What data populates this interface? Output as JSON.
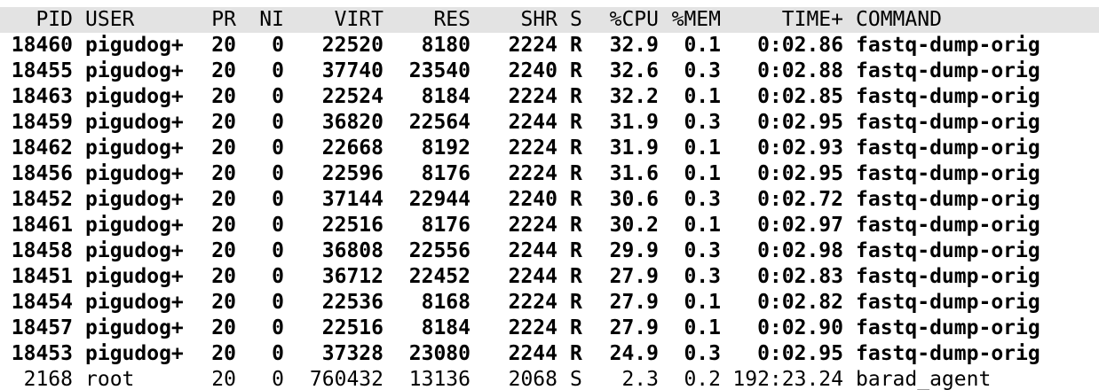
{
  "header": {
    "pid": "PID",
    "user": "USER",
    "pr": "PR",
    "ni": "NI",
    "virt": "VIRT",
    "res": "RES",
    "shr": "SHR",
    "s": "S",
    "cpu": "%CPU",
    "mem": "%MEM",
    "time": "TIME+",
    "command": "COMMAND"
  },
  "processes": [
    {
      "pid": "18460",
      "user": "pigudog+",
      "pr": "20",
      "ni": "0",
      "virt": "22520",
      "res": "8180",
      "shr": "2224",
      "s": "R",
      "cpu": "32.9",
      "mem": "0.1",
      "time": "0:02.86",
      "command": "fastq-dump-orig",
      "bold": true
    },
    {
      "pid": "18455",
      "user": "pigudog+",
      "pr": "20",
      "ni": "0",
      "virt": "37740",
      "res": "23540",
      "shr": "2240",
      "s": "R",
      "cpu": "32.6",
      "mem": "0.3",
      "time": "0:02.88",
      "command": "fastq-dump-orig",
      "bold": true
    },
    {
      "pid": "18463",
      "user": "pigudog+",
      "pr": "20",
      "ni": "0",
      "virt": "22524",
      "res": "8184",
      "shr": "2224",
      "s": "R",
      "cpu": "32.2",
      "mem": "0.1",
      "time": "0:02.85",
      "command": "fastq-dump-orig",
      "bold": true
    },
    {
      "pid": "18459",
      "user": "pigudog+",
      "pr": "20",
      "ni": "0",
      "virt": "36820",
      "res": "22564",
      "shr": "2244",
      "s": "R",
      "cpu": "31.9",
      "mem": "0.3",
      "time": "0:02.95",
      "command": "fastq-dump-orig",
      "bold": true
    },
    {
      "pid": "18462",
      "user": "pigudog+",
      "pr": "20",
      "ni": "0",
      "virt": "22668",
      "res": "8192",
      "shr": "2224",
      "s": "R",
      "cpu": "31.9",
      "mem": "0.1",
      "time": "0:02.93",
      "command": "fastq-dump-orig",
      "bold": true
    },
    {
      "pid": "18456",
      "user": "pigudog+",
      "pr": "20",
      "ni": "0",
      "virt": "22596",
      "res": "8176",
      "shr": "2224",
      "s": "R",
      "cpu": "31.6",
      "mem": "0.1",
      "time": "0:02.95",
      "command": "fastq-dump-orig",
      "bold": true
    },
    {
      "pid": "18452",
      "user": "pigudog+",
      "pr": "20",
      "ni": "0",
      "virt": "37144",
      "res": "22944",
      "shr": "2240",
      "s": "R",
      "cpu": "30.6",
      "mem": "0.3",
      "time": "0:02.72",
      "command": "fastq-dump-orig",
      "bold": true
    },
    {
      "pid": "18461",
      "user": "pigudog+",
      "pr": "20",
      "ni": "0",
      "virt": "22516",
      "res": "8176",
      "shr": "2224",
      "s": "R",
      "cpu": "30.2",
      "mem": "0.1",
      "time": "0:02.97",
      "command": "fastq-dump-orig",
      "bold": true
    },
    {
      "pid": "18458",
      "user": "pigudog+",
      "pr": "20",
      "ni": "0",
      "virt": "36808",
      "res": "22556",
      "shr": "2244",
      "s": "R",
      "cpu": "29.9",
      "mem": "0.3",
      "time": "0:02.98",
      "command": "fastq-dump-orig",
      "bold": true
    },
    {
      "pid": "18451",
      "user": "pigudog+",
      "pr": "20",
      "ni": "0",
      "virt": "36712",
      "res": "22452",
      "shr": "2244",
      "s": "R",
      "cpu": "27.9",
      "mem": "0.3",
      "time": "0:02.83",
      "command": "fastq-dump-orig",
      "bold": true
    },
    {
      "pid": "18454",
      "user": "pigudog+",
      "pr": "20",
      "ni": "0",
      "virt": "22536",
      "res": "8168",
      "shr": "2224",
      "s": "R",
      "cpu": "27.9",
      "mem": "0.1",
      "time": "0:02.82",
      "command": "fastq-dump-orig",
      "bold": true
    },
    {
      "pid": "18457",
      "user": "pigudog+",
      "pr": "20",
      "ni": "0",
      "virt": "22516",
      "res": "8184",
      "shr": "2224",
      "s": "R",
      "cpu": "27.9",
      "mem": "0.1",
      "time": "0:02.90",
      "command": "fastq-dump-orig",
      "bold": true
    },
    {
      "pid": "18453",
      "user": "pigudog+",
      "pr": "20",
      "ni": "0",
      "virt": "37328",
      "res": "23080",
      "shr": "2244",
      "s": "R",
      "cpu": "24.9",
      "mem": "0.3",
      "time": "0:02.95",
      "command": "fastq-dump-orig",
      "bold": true
    },
    {
      "pid": "2168",
      "user": "root",
      "pr": "20",
      "ni": "0",
      "virt": "760432",
      "res": "13136",
      "shr": "2068",
      "s": "S",
      "cpu": "2.3",
      "mem": "0.2",
      "time": "192:23.24",
      "command": "barad_agent",
      "bold": false
    }
  ],
  "colors": {
    "background": "#ffffff",
    "header_background": "#e3e3e3",
    "text": "#000000"
  }
}
